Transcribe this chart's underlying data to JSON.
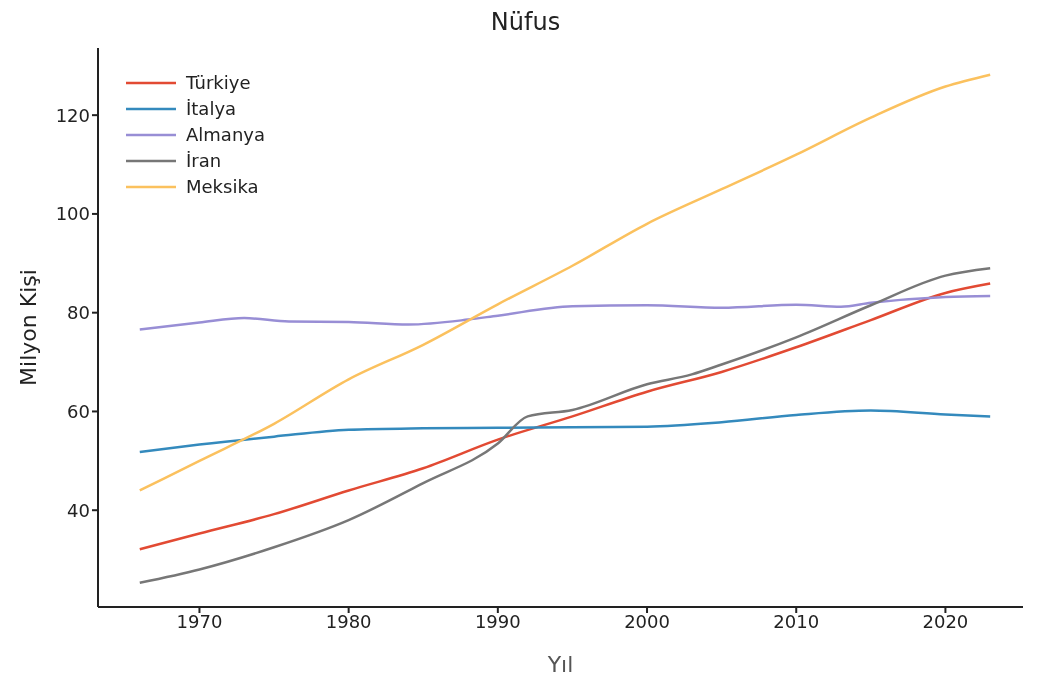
{
  "chart_data": {
    "type": "line",
    "title": "Nüfus",
    "xlabel": "Yıl",
    "ylabel": "Milyon Kişi",
    "xlim": [
      1963.2,
      2025.2
    ],
    "xticks": [
      1970,
      1980,
      1990,
      2000,
      2010,
      2020
    ],
    "ylim": [
      20.4,
      133.6
    ],
    "yticks": [
      40,
      60,
      80,
      100,
      120
    ],
    "grid": false,
    "legend": "top left",
    "marker": "none",
    "line_style": "solid",
    "series": [
      {
        "name": "Türkiye",
        "color": "#e24a33",
        "x": [
          1966,
          1970,
          1975,
          1980,
          1985,
          1990,
          1995,
          2000,
          2005,
          2010,
          2015,
          2020,
          2023
        ],
        "values": [
          32.1,
          35.3,
          39.2,
          44,
          48.5,
          54.3,
          59,
          64,
          68,
          73,
          78.5,
          84,
          85.9
        ]
      },
      {
        "name": "İtalya",
        "color": "#348abd",
        "x": [
          1966,
          1970,
          1975,
          1980,
          1985,
          1990,
          1995,
          2000,
          2005,
          2010,
          2015,
          2020,
          2023
        ],
        "values": [
          51.8,
          53.3,
          54.9,
          56.3,
          56.6,
          56.7,
          56.8,
          56.9,
          57.8,
          59.3,
          60.2,
          59.4,
          59
        ]
      },
      {
        "name": "Almanya",
        "color": "#988ed5",
        "x": [
          1966,
          1970,
          1973,
          1976,
          1980,
          1984,
          1988,
          1990,
          1995,
          2000,
          2005,
          2010,
          2013,
          2015,
          2020,
          2023
        ],
        "values": [
          76.6,
          78,
          78.9,
          78.2,
          78.1,
          77.6,
          78.6,
          79.4,
          81.3,
          81.5,
          81,
          81.6,
          81.2,
          82,
          83.2,
          83.4
        ]
      },
      {
        "name": "İran",
        "color": "#777777",
        "x": [
          1966,
          1970,
          1975,
          1980,
          1985,
          1990,
          1992,
          1995,
          2000,
          2003,
          2005,
          2010,
          2015,
          2020,
          2023
        ],
        "values": [
          25.3,
          28,
          32.5,
          38,
          45.5,
          53.5,
          59,
          60.3,
          65.5,
          67.5,
          69.5,
          75,
          81.5,
          87.5,
          89
        ]
      },
      {
        "name": "Meksika",
        "color": "#fbc15e",
        "x": [
          1966,
          1970,
          1975,
          1980,
          1985,
          1990,
          1995,
          2000,
          2005,
          2010,
          2015,
          2020,
          2023
        ],
        "values": [
          44,
          50,
          57.5,
          66.5,
          73.5,
          81.7,
          89.5,
          98,
          105,
          112,
          119.5,
          125.8,
          128.2
        ]
      }
    ]
  }
}
